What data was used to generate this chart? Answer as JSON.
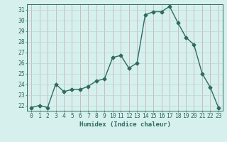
{
  "x": [
    0,
    1,
    2,
    3,
    4,
    5,
    6,
    7,
    8,
    9,
    10,
    11,
    12,
    13,
    14,
    15,
    16,
    17,
    18,
    19,
    20,
    21,
    22,
    23
  ],
  "y": [
    21.8,
    22.0,
    21.8,
    24.0,
    23.3,
    23.5,
    23.5,
    23.8,
    24.3,
    24.5,
    26.5,
    26.7,
    25.5,
    26.0,
    30.5,
    30.8,
    30.8,
    31.3,
    29.8,
    28.4,
    27.7,
    25.0,
    23.7,
    21.8
  ],
  "line_color": "#2d6b5e",
  "marker": "D",
  "markersize": 2.5,
  "linewidth": 1.0,
  "bg_color": "#d6f0ee",
  "grid_color_v": "#c8a8a8",
  "grid_color_h": "#b8d8d4",
  "xlabel": "Humidex (Indice chaleur)",
  "xlim": [
    -0.5,
    23.5
  ],
  "ylim": [
    21.5,
    31.5
  ],
  "yticks": [
    22,
    23,
    24,
    25,
    26,
    27,
    28,
    29,
    30,
    31
  ],
  "xticks": [
    0,
    1,
    2,
    3,
    4,
    5,
    6,
    7,
    8,
    9,
    10,
    11,
    12,
    13,
    14,
    15,
    16,
    17,
    18,
    19,
    20,
    21,
    22,
    23
  ],
  "xlabel_fontsize": 6.5,
  "tick_fontsize": 5.8
}
